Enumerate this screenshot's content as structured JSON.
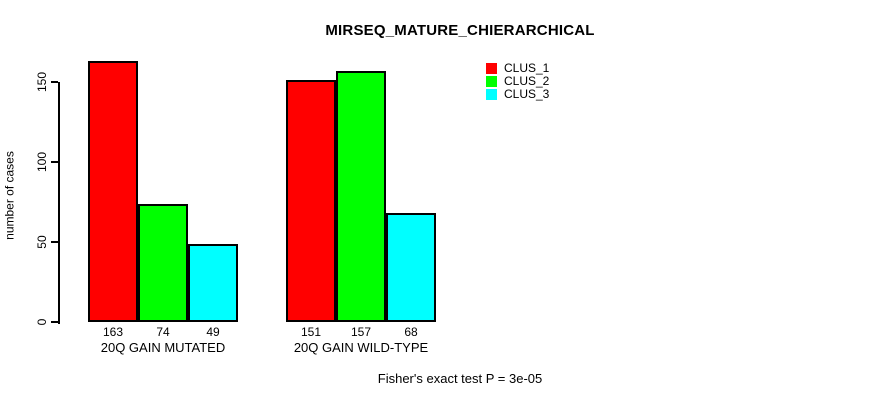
{
  "chart_data": {
    "type": "bar",
    "title": "MIRSEQ_MATURE_CHIERARCHICAL",
    "ylabel": "number of cases",
    "xlabel": "",
    "categories": [
      "20Q GAIN MUTATED",
      "20Q GAIN WILD-TYPE"
    ],
    "series": [
      {
        "name": "CLUS_1",
        "color": "#ff0000",
        "values": [
          163,
          151
        ]
      },
      {
        "name": "CLUS_2",
        "color": "#00ff00",
        "values": [
          74,
          157
        ]
      },
      {
        "name": "CLUS_3",
        "color": "#00ffff",
        "values": [
          49,
          68
        ]
      }
    ],
    "bar_value_labels": [
      [
        163,
        74,
        49
      ],
      [
        151,
        157,
        68
      ]
    ],
    "yticks": [
      0,
      50,
      100,
      150
    ],
    "ylim": [
      0,
      150
    ],
    "grid": false,
    "legend_position": "top-right",
    "legend_entries": [
      "CLUS_1",
      "CLUS_2",
      "CLUS_3"
    ],
    "footnote": "Fisher's exact test P = 3e-05",
    "axis_color": "#000000",
    "bar_border_color": "#000000"
  }
}
